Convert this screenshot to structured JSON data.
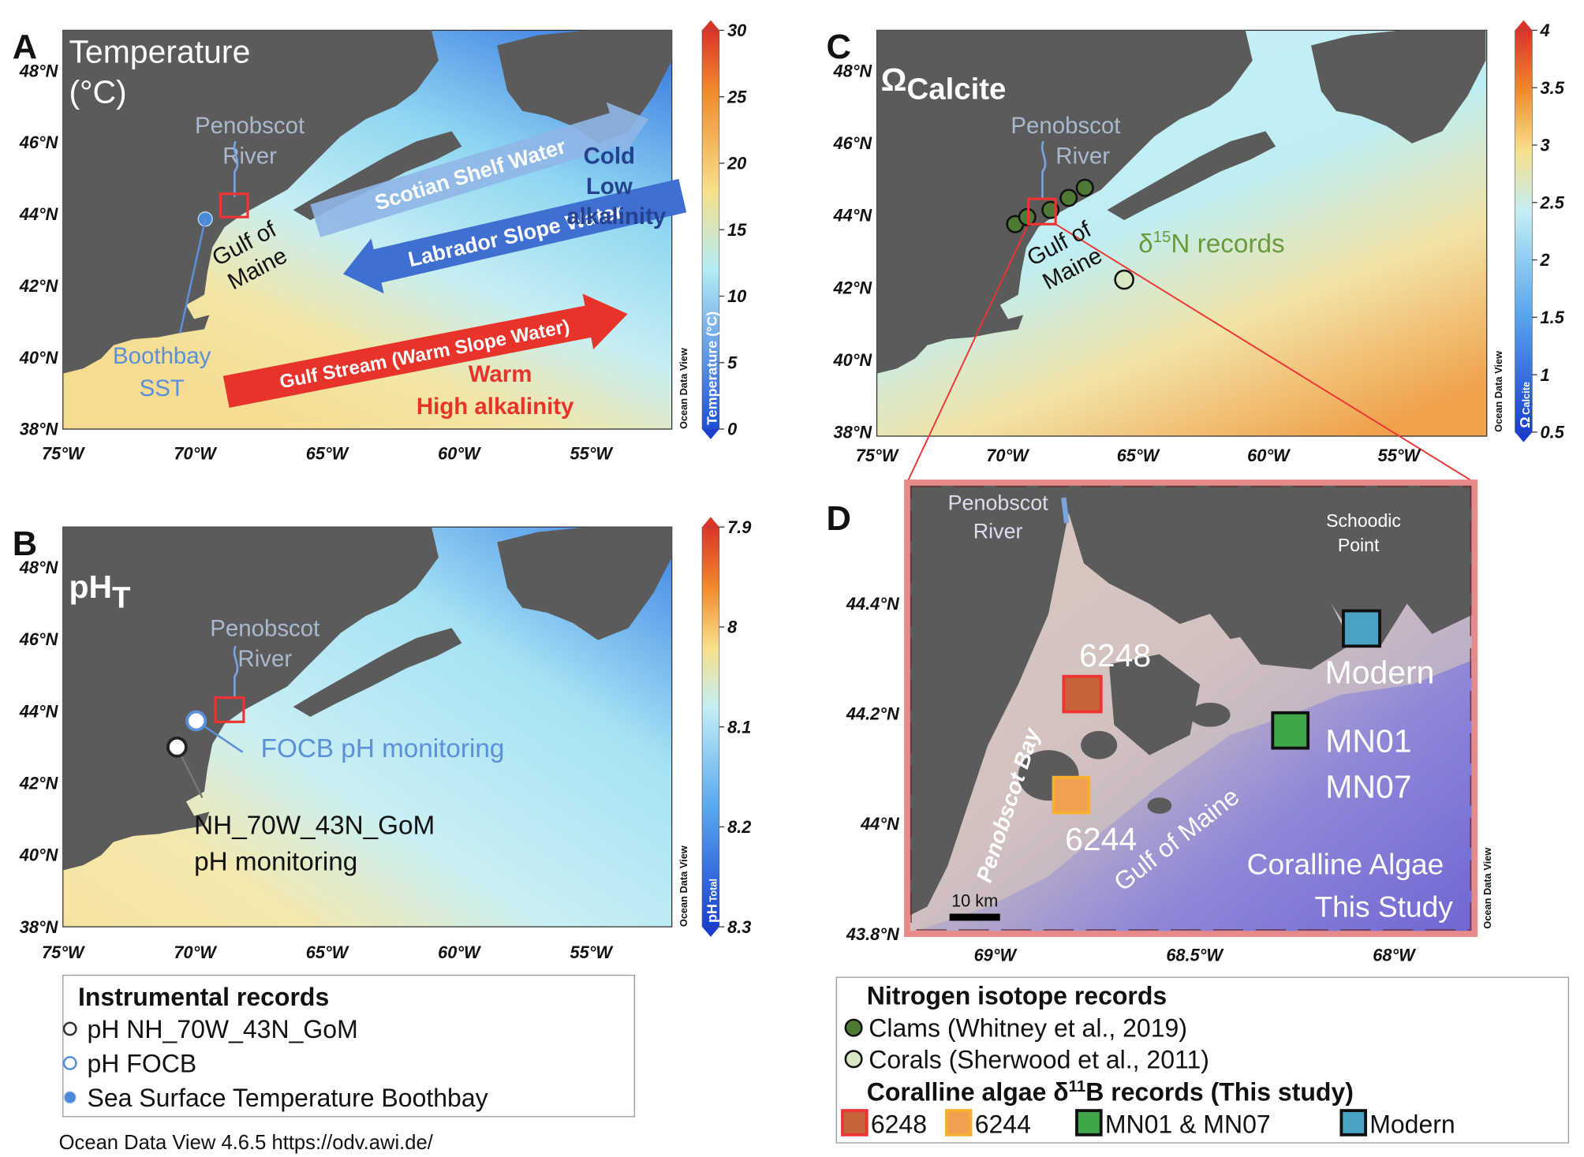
{
  "panels": {
    "a": {
      "letter": "A",
      "title": [
        "Temperature",
        "(°C)"
      ],
      "river": [
        "Penobscot",
        "River"
      ],
      "gulf": [
        "Gulf of",
        "Maine"
      ],
      "scotian": "Scotian Shelf Water",
      "labrador": "Labrador Slope Water",
      "gulf_stream": "Gulf Stream (Warm Slope Water)",
      "cold": [
        "Cold",
        "Low",
        "alkalinity"
      ],
      "warm": [
        "Warm",
        "High alkalinity"
      ],
      "boothbay": [
        "Boothbay",
        "SST"
      ],
      "lat": [
        "48°N",
        "46°N",
        "44°N",
        "42°N",
        "40°N",
        "38°N"
      ],
      "lon": [
        "75°W",
        "70°W",
        "65°W",
        "60°W",
        "55°W"
      ],
      "colorbar": {
        "label": "Temperature (°C)",
        "lim": [
          0,
          30
        ],
        "ticks": [
          0,
          5,
          10,
          15,
          20,
          25,
          30
        ]
      }
    },
    "b": {
      "letter": "B",
      "title": "pH",
      "title_sub": "T",
      "river": [
        "Penobscot",
        "River"
      ],
      "focb": "FOCB pH monitoring",
      "nh": [
        "NH_70W_43N_GoM",
        "pH monitoring"
      ],
      "lat": [
        "48°N",
        "46°N",
        "44°N",
        "42°N",
        "40°N",
        "38°N"
      ],
      "lon": [
        "75°W",
        "70°W",
        "65°W",
        "60°W",
        "55°W"
      ],
      "colorbar": {
        "label": "pH",
        "label_sub": "Total",
        "lim": [
          8.3,
          7.9
        ],
        "ticks": [
          7.9,
          8,
          8.1,
          8.2,
          8.3
        ]
      }
    },
    "c": {
      "letter": "C",
      "title": "Ω",
      "title_sub": "Calcite",
      "river": [
        "Penobscot",
        "River"
      ],
      "gulf": [
        "Gulf of",
        "Maine"
      ],
      "d15n": [
        "δ",
        "15",
        "N records"
      ],
      "lat": [
        "48°N",
        "46°N",
        "44°N",
        "42°N",
        "40°N",
        "38°N"
      ],
      "lon": [
        "75°W",
        "70°W",
        "65°W",
        "60°W",
        "55°W"
      ],
      "colorbar": {
        "label": "Ω",
        "label_sub": "Calcite",
        "lim": [
          0.5,
          4
        ],
        "ticks": [
          0.5,
          1,
          1.5,
          2,
          2.5,
          3,
          3.5,
          4
        ]
      }
    },
    "d": {
      "letter": "D",
      "river": [
        "Penobscot",
        "River"
      ],
      "schoodic": [
        "Schoodic",
        "Point"
      ],
      "s6248": "6248",
      "s6244": "6244",
      "modern": "Modern",
      "mn": [
        "MN01",
        "MN07"
      ],
      "bay": "Penobscot Bay",
      "gulf": "Gulf of Maine",
      "study": [
        "Coralline Algae",
        "This Study"
      ],
      "scale": "10 km",
      "lat": [
        "44.4°N",
        "44.2°N",
        "44°N",
        "43.8°N"
      ],
      "lon": [
        "69°W",
        "68.5°W",
        "68°W"
      ]
    }
  },
  "odv_side": "Ocean Data View",
  "legend_left": {
    "title": "Instrumental records",
    "items": [
      "pH NH_70W_43N_GoM",
      "pH FOCB",
      "Sea Surface Temperature Boothbay"
    ]
  },
  "legend_right": {
    "title": "Nitrogen isotope records",
    "items": [
      "Clams (Whitney et al., 2019)",
      "Corals (Sherwood et al., 2011)"
    ],
    "subtitle": [
      "Coralline algae δ",
      "11",
      "B records (This study)"
    ],
    "algae": [
      "6248",
      "6244",
      "MN01 & MN07",
      "Modern"
    ]
  },
  "footer": "Ocean Data View 4.6.5 https://odv.awi.de/"
}
